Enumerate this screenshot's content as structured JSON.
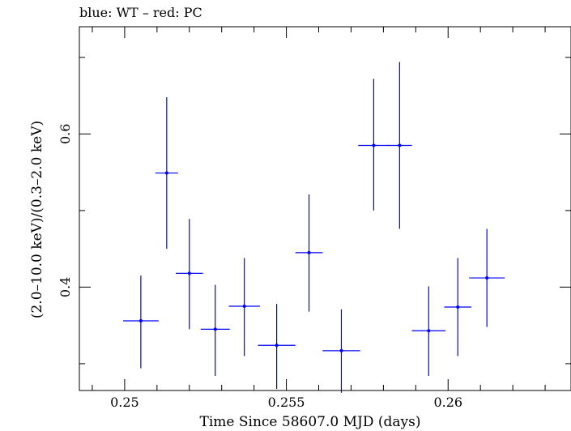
{
  "chart_data": {
    "type": "scatter",
    "title": "blue: WT – red: PC",
    "xlabel": "Time Since 58607.0 MJD (days)",
    "ylabel": "(2.0–10.0 keV)/(0.3–2.0 keV)",
    "xlim": [
      0.2486,
      0.2638
    ],
    "ylim": [
      0.265,
      0.74
    ],
    "x_ticks": [
      0.25,
      0.255,
      0.26
    ],
    "x_tick_labels": [
      "0.25",
      "0.255",
      "0.26"
    ],
    "y_ticks": [
      0.4,
      0.6
    ],
    "y_tick_labels": [
      "0.4",
      "0.6"
    ],
    "grid": false,
    "series": [
      {
        "color": "#0000ff",
        "points": [
          {
            "x": 0.2505,
            "xerr": 0.00055,
            "y": 0.356,
            "yerr_lo": 0.062,
            "yerr_hi": 0.059
          },
          {
            "x": 0.2513,
            "xerr": 0.00035,
            "y": 0.549,
            "yerr_lo": 0.099,
            "yerr_hi": 0.099
          },
          {
            "x": 0.252,
            "xerr": 0.00042,
            "y": 0.418,
            "yerr_lo": 0.073,
            "yerr_hi": 0.071
          },
          {
            "x": 0.2528,
            "xerr": 0.00045,
            "y": 0.345,
            "yerr_lo": 0.061,
            "yerr_hi": 0.058
          },
          {
            "x": 0.2537,
            "xerr": 0.00048,
            "y": 0.375,
            "yerr_lo": 0.065,
            "yerr_hi": 0.063
          },
          {
            "x": 0.2547,
            "xerr": 0.00058,
            "y": 0.324,
            "yerr_lo": 0.057,
            "yerr_hi": 0.054
          },
          {
            "x": 0.2557,
            "xerr": 0.00042,
            "y": 0.445,
            "yerr_lo": 0.077,
            "yerr_hi": 0.076
          },
          {
            "x": 0.2567,
            "xerr": 0.00058,
            "y": 0.317,
            "yerr_lo": 0.055,
            "yerr_hi": 0.054
          },
          {
            "x": 0.2577,
            "xerr": 0.00048,
            "y": 0.585,
            "yerr_lo": 0.085,
            "yerr_hi": 0.087
          },
          {
            "x": 0.2585,
            "xerr": 0.00038,
            "y": 0.585,
            "yerr_lo": 0.109,
            "yerr_hi": 0.109
          },
          {
            "x": 0.2594,
            "xerr": 0.00052,
            "y": 0.343,
            "yerr_lo": 0.059,
            "yerr_hi": 0.058
          },
          {
            "x": 0.2603,
            "xerr": 0.00042,
            "y": 0.374,
            "yerr_lo": 0.064,
            "yerr_hi": 0.064
          },
          {
            "x": 0.2612,
            "xerr": 0.00055,
            "y": 0.412,
            "yerr_lo": 0.064,
            "yerr_hi": 0.064
          }
        ]
      }
    ]
  }
}
